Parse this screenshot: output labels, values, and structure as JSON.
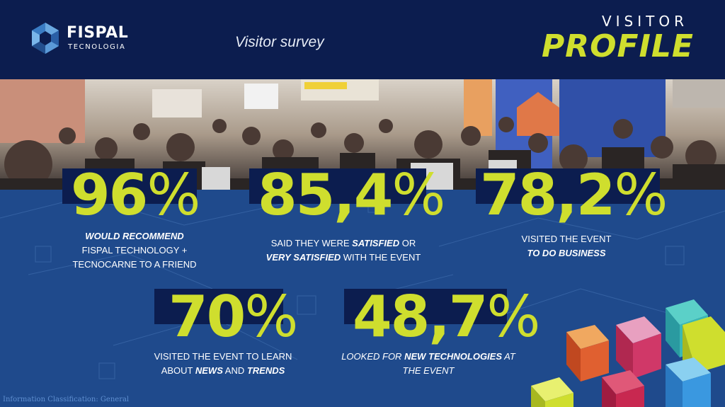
{
  "header": {
    "logo_name": "FISPAL",
    "logo_sub": "TECNOLOGIA",
    "survey_title": "Visitor survey",
    "visitor_word": "VISITOR",
    "profile_word": "PROFILE"
  },
  "stats": [
    {
      "value": "96",
      "unit": "%",
      "line1_bold_italic": "WOULD RECOMMEND",
      "line2": "FISPAL TECHNOLOGY +",
      "line3": "TECNOCARNE TO A FRIEND"
    },
    {
      "value": "85,4",
      "unit": "%",
      "line1_pre": "SAID THEY WERE ",
      "line1_bold": "SATISFIED",
      "line1_post": " OR",
      "line2_bold": "VERY SATISFIED",
      "line2_post": " WITH THE EVENT"
    },
    {
      "value": "78,2",
      "unit": "%",
      "line1": "VISITED THE EVENT",
      "line2_bold": "TO DO BUSINESS"
    },
    {
      "value": "70",
      "unit": "%",
      "line1": "VISITED THE EVENT TO LEARN",
      "line2_pre": "ABOUT ",
      "line2_bold1": "NEWS",
      "line2_mid": " AND ",
      "line2_bold2": "TRENDS"
    },
    {
      "value": "48,7",
      "unit": "%",
      "line1_pre": "LOOKED FOR ",
      "line1_bold": "NEW TECHNOLOGIES",
      "line1_post": " AT",
      "line2": "THE EVENT"
    }
  ],
  "footer_note": "Information Classification: General",
  "colors": {
    "navy": "#0c1d4f",
    "blue": "#1f4a8c",
    "lime": "#cfde2e"
  },
  "icons": [
    "fispal-logo-icon",
    "crowd-photo",
    "cubes-decoration"
  ]
}
